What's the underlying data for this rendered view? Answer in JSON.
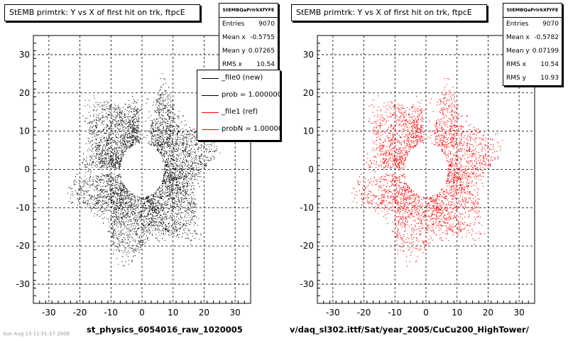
{
  "panels": [
    {
      "title": "StEMB primtrk: Y vs X of first hit on trk, ftpcE",
      "stats": {
        "name": "StEMBQaPrIrkXfYFE",
        "rows": [
          {
            "label": "Entries",
            "value": "9070"
          },
          {
            "label": "Mean x",
            "value": "-0.5755"
          },
          {
            "label": "Mean y",
            "value": "0.07265"
          },
          {
            "label": "RMS x",
            "value": "10.54"
          }
        ]
      },
      "legend": [
        {
          "label": "_file0 (new)",
          "color": "#000000"
        },
        {
          "label": "prob = 1.000000",
          "color": "#000000"
        },
        {
          "label": "_file1 (ref)",
          "color": "#ff0000"
        },
        {
          "label": "probN = 1.000000",
          "color": "#ff0000"
        }
      ],
      "file_label": "st_physics_6054016_raw_1020005",
      "corner_note": "Sun Aug 13 11:51:17 2006"
    },
    {
      "title": "StEMB primtrk: Y vs X of first hit on trk, ftpcE",
      "stats": {
        "name": "StEMBQaPrIrkXfYFE",
        "rows": [
          {
            "label": "Entries",
            "value": "9070"
          },
          {
            "label": "Mean x",
            "value": "-0.5782"
          },
          {
            "label": "Mean y",
            "value": "0.07199"
          },
          {
            "label": "RMS x",
            "value": "10.54"
          },
          {
            "label": "RMS y",
            "value": "10.93"
          }
        ]
      },
      "file_label": "v/daq_sl302.ittf/Sat/year_2005/CuCu200_HighTower/"
    }
  ],
  "chart_data": [
    {
      "type": "scatter",
      "title": "StEMB primtrk: Y vs X of first hit on trk, ftpcE",
      "color": "#000000",
      "xlim": [
        -35,
        35
      ],
      "ylim": [
        -35,
        35
      ],
      "xticks": [
        -30,
        -20,
        -10,
        0,
        10,
        20,
        30
      ],
      "yticks": [
        -30,
        -20,
        -10,
        0,
        10,
        20,
        30
      ],
      "grid": true,
      "entries": 9070,
      "mean_x": -0.5755,
      "mean_y": 0.07265,
      "rms_x": 10.54,
      "distribution": {
        "inner_radius": 7,
        "outer_radius_min": 13,
        "outer_radius_max": 27,
        "gaps_deg": [
          {
            "center": 85,
            "width": 18
          },
          {
            "center": 182,
            "width": 8
          }
        ]
      }
    },
    {
      "type": "scatter",
      "title": "StEMB primtrk: Y vs X of first hit on trk, ftpcE",
      "color": "#ff0000",
      "xlim": [
        -35,
        35
      ],
      "ylim": [
        -35,
        35
      ],
      "xticks": [
        -30,
        -20,
        -10,
        0,
        10,
        20,
        30
      ],
      "yticks": [
        -30,
        -20,
        -10,
        0,
        10,
        20,
        30
      ],
      "grid": true,
      "entries": 9070,
      "mean_x": -0.5782,
      "mean_y": 0.07199,
      "rms_x": 10.54,
      "rms_y": 10.93,
      "distribution": {
        "inner_radius": 7,
        "outer_radius_min": 13,
        "outer_radius_max": 27,
        "gaps_deg": [
          {
            "center": 85,
            "width": 18
          },
          {
            "center": 182,
            "width": 8
          }
        ]
      }
    }
  ]
}
